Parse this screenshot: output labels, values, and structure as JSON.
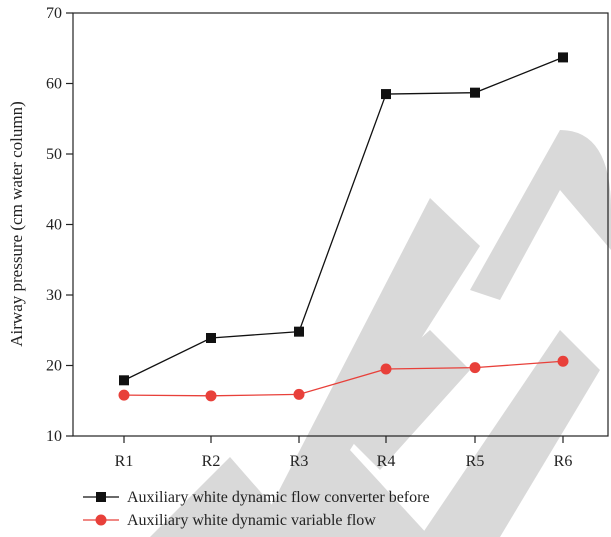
{
  "chart_data": {
    "type": "line",
    "categories": [
      "R1",
      "R2",
      "R3",
      "R4",
      "R5",
      "R6"
    ],
    "series": [
      {
        "name": "Auxiliary white dynamic flow converter before",
        "values": [
          17.9,
          23.9,
          24.8,
          58.5,
          58.7,
          63.7
        ],
        "color": "#111111",
        "marker": "square"
      },
      {
        "name": "Auxiliary white dynamic variable flow",
        "values": [
          15.8,
          15.7,
          15.9,
          19.5,
          19.7,
          20.6
        ],
        "color": "#e8403a",
        "marker": "circle"
      }
    ],
    "ylabel": "Airway pressure (cm water column)",
    "xlabel": "",
    "ylim": [
      10,
      70
    ],
    "yticks": [
      10,
      20,
      30,
      40,
      50,
      60,
      70
    ],
    "grid": false,
    "legend_position": "bottom",
    "watermark_color": "#d9d9d9"
  }
}
